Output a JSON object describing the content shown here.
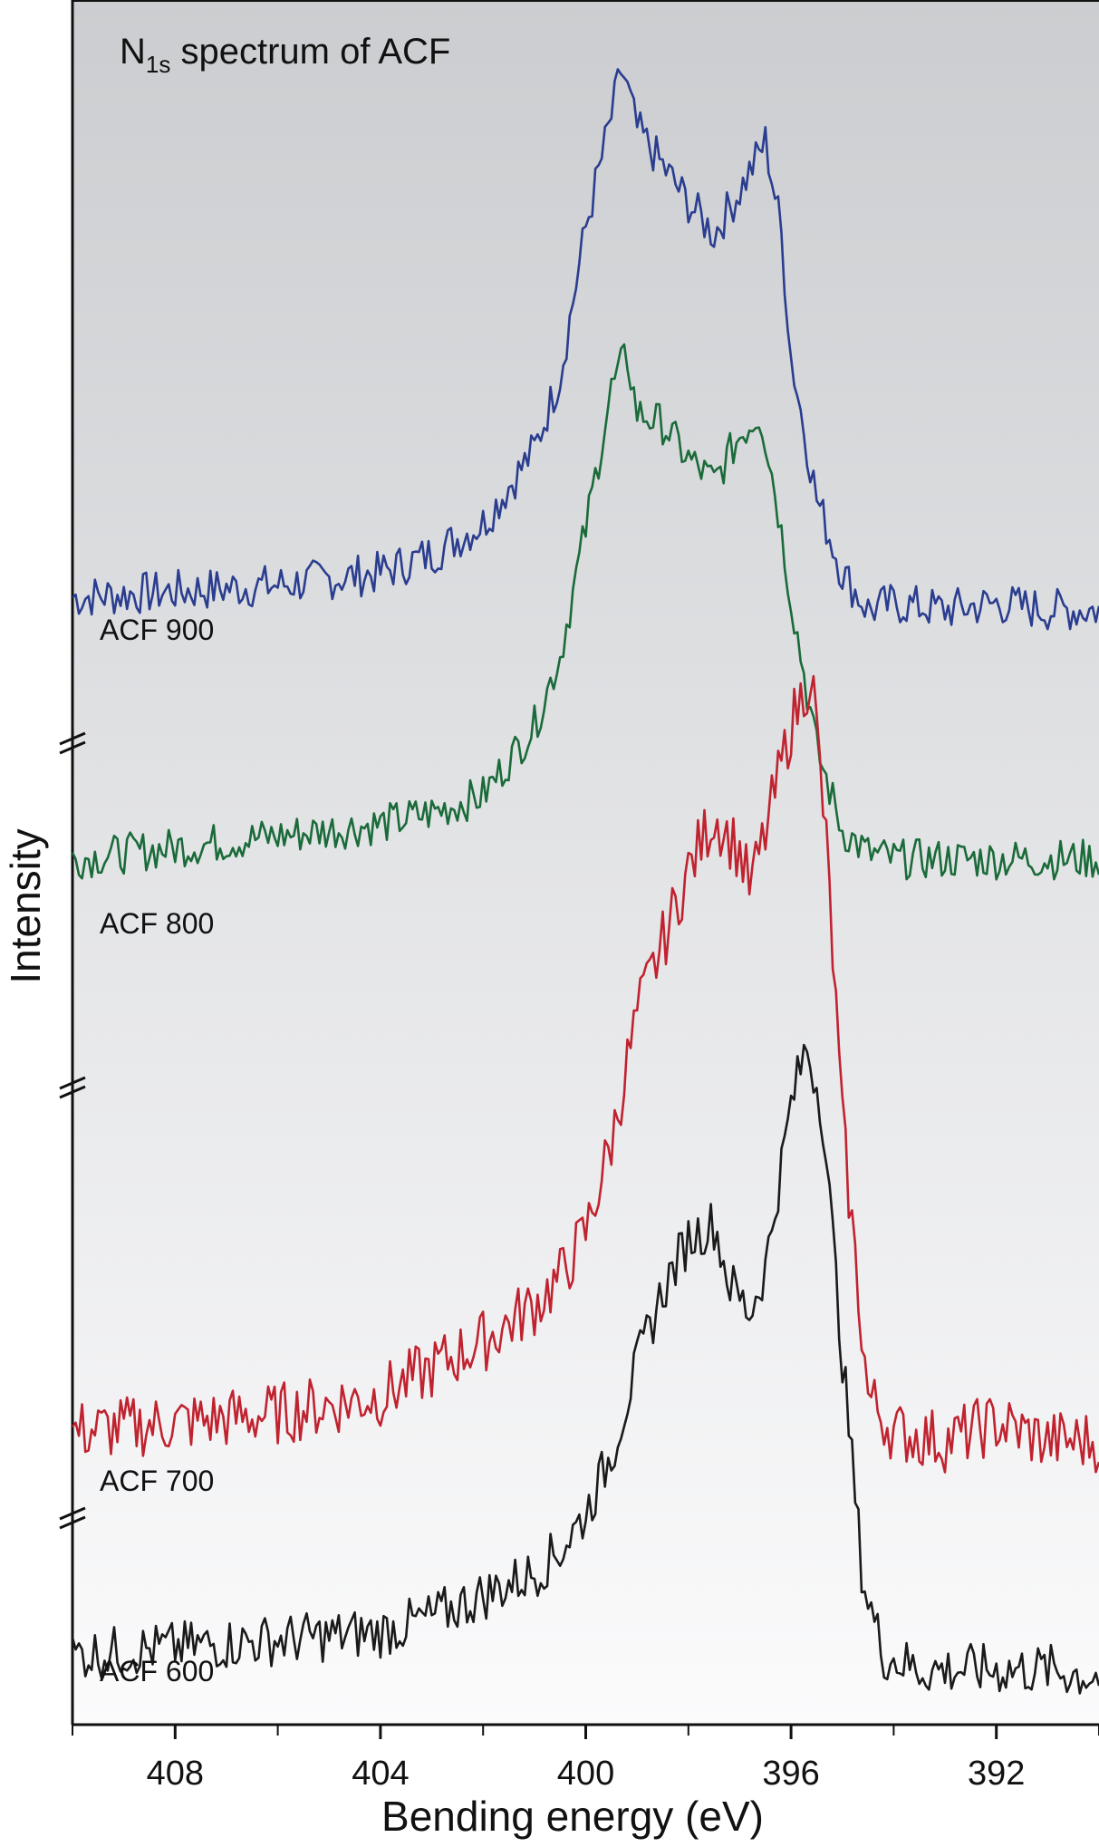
{
  "chart_data": {
    "type": "line",
    "title_main": "N",
    "title_sub": "1s",
    "title_rest": " spectrum of ACF",
    "xlabel": "Bending energy (eV)",
    "ylabel": "Intensity",
    "x_reversed": true,
    "xlim": [
      410,
      390
    ],
    "x_ticks": [
      408,
      404,
      400,
      396,
      392
    ],
    "y_axis_breaks": 3,
    "series": [
      {
        "name": "ACF 900",
        "color": "#2a3d8f",
        "points": [
          [
            410,
            0.06
          ],
          [
            408,
            0.07
          ],
          [
            406,
            0.08
          ],
          [
            404,
            0.1
          ],
          [
            403,
            0.13
          ],
          [
            402,
            0.18
          ],
          [
            401.5,
            0.24
          ],
          [
            401,
            0.3
          ],
          [
            400.5,
            0.42
          ],
          [
            400,
            0.66
          ],
          [
            399.5,
            0.84
          ],
          [
            399.3,
            0.92
          ],
          [
            399,
            0.82
          ],
          [
            398.5,
            0.76
          ],
          [
            398,
            0.7
          ],
          [
            397.5,
            0.65
          ],
          [
            397,
            0.72
          ],
          [
            396.5,
            0.8
          ],
          [
            396.2,
            0.66
          ],
          [
            396,
            0.45
          ],
          [
            395.5,
            0.22
          ],
          [
            395,
            0.1
          ],
          [
            394.5,
            0.04
          ],
          [
            394,
            0.05
          ],
          [
            393,
            0.04
          ],
          [
            392,
            0.05
          ],
          [
            391,
            0.04
          ],
          [
            390,
            0.04
          ]
        ]
      },
      {
        "name": "ACF 800",
        "color": "#1b6b3a",
        "points": [
          [
            410,
            0.05
          ],
          [
            408,
            0.07
          ],
          [
            406,
            0.09
          ],
          [
            404,
            0.11
          ],
          [
            403,
            0.13
          ],
          [
            402,
            0.16
          ],
          [
            401.5,
            0.22
          ],
          [
            401,
            0.28
          ],
          [
            400.5,
            0.4
          ],
          [
            400,
            0.62
          ],
          [
            399.5,
            0.86
          ],
          [
            399.2,
            0.92
          ],
          [
            399,
            0.82
          ],
          [
            398.5,
            0.8
          ],
          [
            398,
            0.74
          ],
          [
            397.5,
            0.7
          ],
          [
            397,
            0.78
          ],
          [
            396.6,
            0.82
          ],
          [
            396.3,
            0.68
          ],
          [
            396,
            0.5
          ],
          [
            395.5,
            0.24
          ],
          [
            395,
            0.1
          ],
          [
            394.5,
            0.06
          ],
          [
            394,
            0.05
          ],
          [
            393,
            0.05
          ],
          [
            392,
            0.05
          ],
          [
            391,
            0.05
          ],
          [
            390,
            0.05
          ]
        ]
      },
      {
        "name": "ACF 700",
        "color": "#c0232f",
        "points": [
          [
            410,
            0.06
          ],
          [
            408,
            0.07
          ],
          [
            406,
            0.08
          ],
          [
            404,
            0.1
          ],
          [
            403,
            0.13
          ],
          [
            402,
            0.16
          ],
          [
            401,
            0.2
          ],
          [
            400.5,
            0.23
          ],
          [
            400,
            0.28
          ],
          [
            399.5,
            0.38
          ],
          [
            399,
            0.52
          ],
          [
            398.5,
            0.6
          ],
          [
            398,
            0.68
          ],
          [
            397.5,
            0.74
          ],
          [
            397,
            0.7
          ],
          [
            396.8,
            0.66
          ],
          [
            396.5,
            0.72
          ],
          [
            396,
            0.84
          ],
          [
            395.6,
            0.9
          ],
          [
            395.3,
            0.7
          ],
          [
            395,
            0.4
          ],
          [
            394.5,
            0.1
          ],
          [
            394,
            0.06
          ],
          [
            393,
            0.05
          ],
          [
            392,
            0.07
          ],
          [
            391,
            0.05
          ],
          [
            390,
            0.05
          ]
        ]
      },
      {
        "name": "ACF 600",
        "color": "#1a1a1a",
        "points": [
          [
            410,
            0.06
          ],
          [
            408,
            0.07
          ],
          [
            406,
            0.08
          ],
          [
            404,
            0.09
          ],
          [
            403,
            0.11
          ],
          [
            402,
            0.14
          ],
          [
            401,
            0.17
          ],
          [
            400.5,
            0.2
          ],
          [
            400,
            0.25
          ],
          [
            399.5,
            0.33
          ],
          [
            399,
            0.45
          ],
          [
            398.5,
            0.55
          ],
          [
            398,
            0.62
          ],
          [
            397.5,
            0.64
          ],
          [
            397.2,
            0.56
          ],
          [
            396.8,
            0.52
          ],
          [
            396.5,
            0.58
          ],
          [
            396,
            0.8
          ],
          [
            395.7,
            0.88
          ],
          [
            395.4,
            0.8
          ],
          [
            395,
            0.46
          ],
          [
            394.6,
            0.16
          ],
          [
            394.2,
            0.06
          ],
          [
            393.5,
            0.04
          ],
          [
            392,
            0.04
          ],
          [
            391,
            0.04
          ],
          [
            390,
            0.03
          ]
        ]
      }
    ]
  }
}
